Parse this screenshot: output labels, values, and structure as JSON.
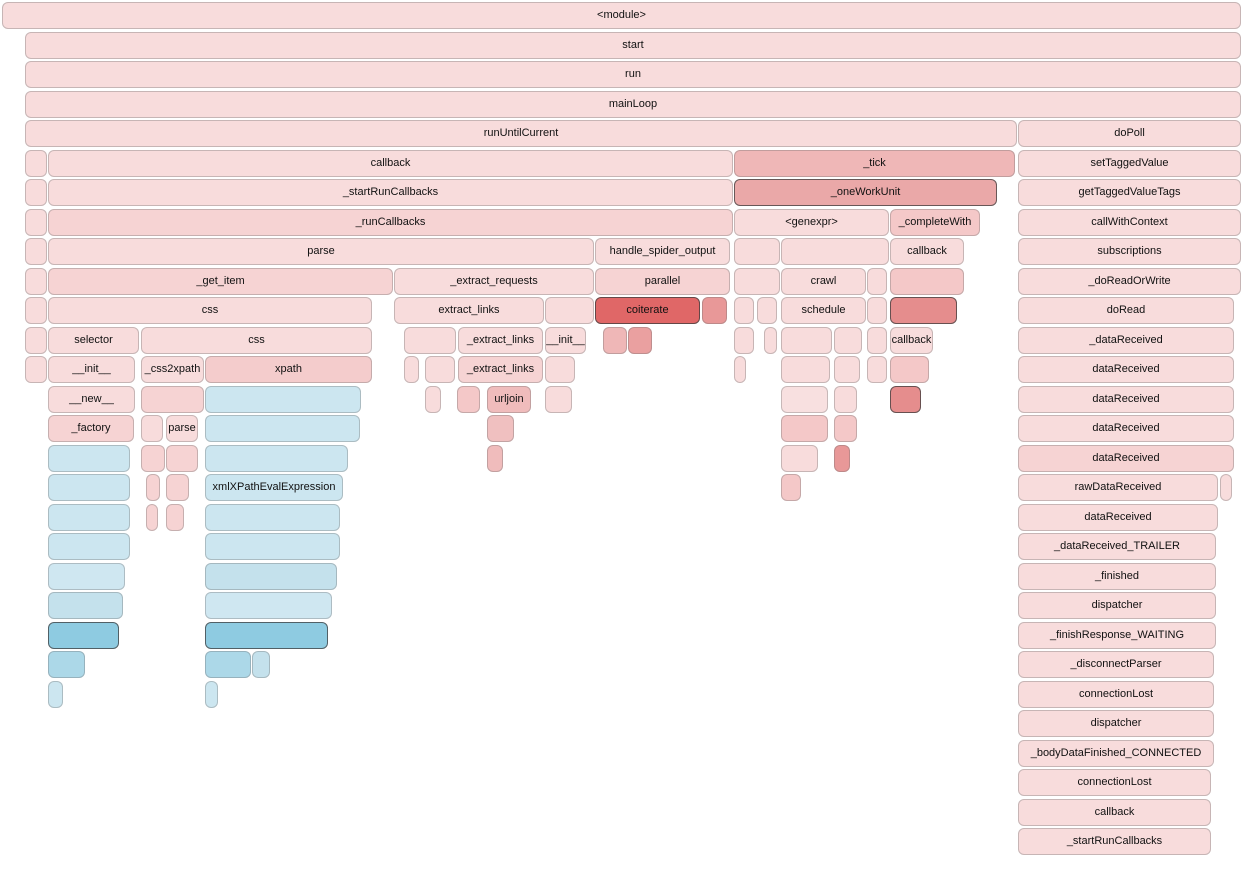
{
  "frames": [
    {
      "label": "<module>",
      "color": "#f8dcdc"
    },
    {
      "label": "start",
      "color": "#f8dcdc"
    },
    {
      "label": "run",
      "color": "#f8dcdc"
    },
    {
      "label": "mainLoop",
      "color": "#f8dcdc"
    },
    {
      "label": "runUntilCurrent",
      "color": "#f8dcdc"
    },
    {
      "label": "doPoll",
      "color": "#f8dcdc"
    },
    {
      "label": "",
      "color": "#f8dcdc"
    },
    {
      "label": "callback",
      "color": "#f8dcdc"
    },
    {
      "label": "_tick",
      "color": "#efb7b7"
    },
    {
      "label": "setTaggedValue",
      "color": "#f8dcdc"
    },
    {
      "label": "",
      "color": "#f8dcdc"
    },
    {
      "label": "_startRunCallbacks",
      "color": "#f8dcdc"
    },
    {
      "label": "_oneWorkUnit",
      "color": "#eaa8a8"
    },
    {
      "label": "getTaggedValueTags",
      "color": "#f8dcdc"
    },
    {
      "label": "",
      "color": "#f8dcdc"
    },
    {
      "label": "_runCallbacks",
      "color": "#f6d3d3"
    },
    {
      "label": "<genexpr>",
      "color": "#f8dcdc"
    },
    {
      "label": "_completeWith",
      "color": "#f4c8c8"
    },
    {
      "label": "callWithContext",
      "color": "#f8dcdc"
    },
    {
      "label": "",
      "color": "#f8dcdc"
    },
    {
      "label": "parse",
      "color": "#f8dcdc"
    },
    {
      "label": "handle_spider_output",
      "color": "#f8dcdc"
    },
    {
      "label": "",
      "color": "#f8dcdc"
    },
    {
      "label": "",
      "color": "#f8dcdc"
    },
    {
      "label": "callback",
      "color": "#f8dcdc"
    },
    {
      "label": "subscriptions",
      "color": "#f8dcdc"
    },
    {
      "label": "",
      "color": "#f8dcdc"
    },
    {
      "label": "_get_item",
      "color": "#f6d3d3"
    },
    {
      "label": "_extract_requests",
      "color": "#f8dcdc"
    },
    {
      "label": "parallel",
      "color": "#f6d3d3"
    },
    {
      "label": "",
      "color": "#f8dcdc"
    },
    {
      "label": "crawl",
      "color": "#f8dcdc"
    },
    {
      "label": "",
      "color": "#f8dcdc"
    },
    {
      "label": "",
      "color": "#f4c8c8"
    },
    {
      "label": "_doReadOrWrite",
      "color": "#f8dcdc"
    },
    {
      "label": "",
      "color": "#f8dcdc"
    },
    {
      "label": "css",
      "color": "#f8dcdc"
    },
    {
      "label": "extract_links",
      "color": "#f8dcdc"
    },
    {
      "label": "",
      "color": "#f8dcdc"
    },
    {
      "label": "coiterate",
      "color": "#e06767"
    },
    {
      "label": "",
      "color": "#e89898"
    },
    {
      "label": "",
      "color": "#f8dcdc"
    },
    {
      "label": "",
      "color": "#f8dcdc"
    },
    {
      "label": "schedule",
      "color": "#f8dcdc"
    },
    {
      "label": "",
      "color": "#f8dcdc"
    },
    {
      "label": "",
      "color": "#e58d8d"
    },
    {
      "label": "doRead",
      "color": "#f8dcdc"
    },
    {
      "label": "",
      "color": "#f8dcdc"
    },
    {
      "label": "selector",
      "color": "#f8dcdc"
    },
    {
      "label": "css",
      "color": "#f8dcdc"
    },
    {
      "label": "",
      "color": "#f8dcdc"
    },
    {
      "label": "_extract_links",
      "color": "#f8dcdc"
    },
    {
      "label": "__init__",
      "color": "#f8dcdc"
    },
    {
      "label": "",
      "color": "#efb7b7"
    },
    {
      "label": "",
      "color": "#eaa0a0"
    },
    {
      "label": "",
      "color": "#f8dcdc"
    },
    {
      "label": "",
      "color": "#f8dcdc"
    },
    {
      "label": "",
      "color": "#f8dcdc"
    },
    {
      "label": "",
      "color": "#f8dcdc"
    },
    {
      "label": "",
      "color": "#f8dcdc"
    },
    {
      "label": "callback",
      "color": "#f8dcdc"
    },
    {
      "label": "_dataReceived",
      "color": "#f8dcdc"
    },
    {
      "label": "",
      "color": "#f8dcdc"
    },
    {
      "label": "__init__",
      "color": "#f8dcdc"
    },
    {
      "label": "_css2xpath",
      "color": "#f8dcdc"
    },
    {
      "label": "xpath",
      "color": "#f4cccc"
    },
    {
      "label": "",
      "color": "#f8dcdc"
    },
    {
      "label": "",
      "color": "#f8dcdc"
    },
    {
      "label": "_extract_links",
      "color": "#f6d3d3"
    },
    {
      "label": "",
      "color": "#f8dcdc"
    },
    {
      "label": "",
      "color": "#f8dcdc"
    },
    {
      "label": "",
      "color": "#f8dcdc"
    },
    {
      "label": "",
      "color": "#f8dcdc"
    },
    {
      "label": "",
      "color": "#f8dcdc"
    },
    {
      "label": "",
      "color": "#f4c8c8"
    },
    {
      "label": "dataReceived",
      "color": "#f8dcdc"
    },
    {
      "label": "__new__",
      "color": "#f8dcdc"
    },
    {
      "label": "",
      "color": "#f6d3d3"
    },
    {
      "label": "",
      "color": "#cce6f0"
    },
    {
      "label": "",
      "color": "#f8dcdc"
    },
    {
      "label": "",
      "color": "#f4c8c8"
    },
    {
      "label": "urljoin",
      "color": "#f0bcbc"
    },
    {
      "label": "",
      "color": "#f8dcdc"
    },
    {
      "label": "",
      "color": "#f8e0e0"
    },
    {
      "label": "",
      "color": "#f8dcdc"
    },
    {
      "label": "",
      "color": "#e58d8d"
    },
    {
      "label": "dataReceived",
      "color": "#f8dcdc"
    },
    {
      "label": "_factory",
      "color": "#f6d3d3"
    },
    {
      "label": "",
      "color": "#f8dcdc"
    },
    {
      "label": "parse",
      "color": "#f8dcdc"
    },
    {
      "label": "",
      "color": "#cce6f0"
    },
    {
      "label": "",
      "color": "#f0c0c0"
    },
    {
      "label": "",
      "color": "#f4c8c8"
    },
    {
      "label": "",
      "color": "#f4c8c8"
    },
    {
      "label": "dataReceived",
      "color": "#f8dcdc"
    },
    {
      "label": "",
      "color": "#cce6f0"
    },
    {
      "label": "",
      "color": "#f6d3d3"
    },
    {
      "label": "",
      "color": "#f6d3d3"
    },
    {
      "label": "",
      "color": "#cce6f0"
    },
    {
      "label": "",
      "color": "#f0bcbc"
    },
    {
      "label": "",
      "color": "#f8dcdc"
    },
    {
      "label": "",
      "color": "#e89898"
    },
    {
      "label": "dataReceived",
      "color": "#f6d3d3"
    },
    {
      "label": "",
      "color": "#cce6f0"
    },
    {
      "label": "",
      "color": "#f6d3d3"
    },
    {
      "label": "",
      "color": "#f6d3d3"
    },
    {
      "label": "xmlXPathEvalExpression",
      "color": "#cce6f0"
    },
    {
      "label": "",
      "color": "#f4c8c8"
    },
    {
      "label": "rawDataReceived",
      "color": "#f8dcdc"
    },
    {
      "label": "",
      "color": "#f8dcdc"
    },
    {
      "label": "",
      "color": "#cce6f0"
    },
    {
      "label": "",
      "color": "#f6d3d3"
    },
    {
      "label": "",
      "color": "#f6d3d3"
    },
    {
      "label": "",
      "color": "#cce6f0"
    },
    {
      "label": "dataReceived",
      "color": "#f8dcdc"
    },
    {
      "label": "",
      "color": "#cce6f0"
    },
    {
      "label": "",
      "color": "#cce6f0"
    },
    {
      "label": "_dataReceived_TRAILER",
      "color": "#f8dcdc"
    },
    {
      "label": "",
      "color": "#cfe7f1"
    },
    {
      "label": "",
      "color": "#c4e1ec"
    },
    {
      "label": "_finished",
      "color": "#f8dcdc"
    },
    {
      "label": "",
      "color": "#c4e1ec"
    },
    {
      "label": "",
      "color": "#cfe7f1"
    },
    {
      "label": "dispatcher",
      "color": "#f8dcdc"
    },
    {
      "label": "",
      "color": "#8ecbe1"
    },
    {
      "label": "",
      "color": "#8ecbe1"
    },
    {
      "label": "_finishResponse_WAITING",
      "color": "#f8dcdc"
    },
    {
      "label": "",
      "color": "#acd8e8"
    },
    {
      "label": "",
      "color": "#acd8e8"
    },
    {
      "label": "",
      "color": "#c4e1ec"
    },
    {
      "label": "_disconnectParser",
      "color": "#f8dcdc"
    },
    {
      "label": "",
      "color": "#cce6f0"
    },
    {
      "label": "",
      "color": "#cce6f0"
    },
    {
      "label": "connectionLost",
      "color": "#f8dcdc"
    },
    {
      "label": "dispatcher",
      "color": "#f8dcdc"
    },
    {
      "label": "_bodyDataFinished_CONNECTED",
      "color": "#f8dcdc"
    },
    {
      "label": "connectionLost",
      "color": "#f8dcdc"
    },
    {
      "label": "callback",
      "color": "#f8dcdc"
    },
    {
      "label": "_startRunCallbacks",
      "color": "#f8dcdc"
    },
    {
      "label": "_runCallbacks",
      "color": "#f6d3d3"
    }
  ]
}
